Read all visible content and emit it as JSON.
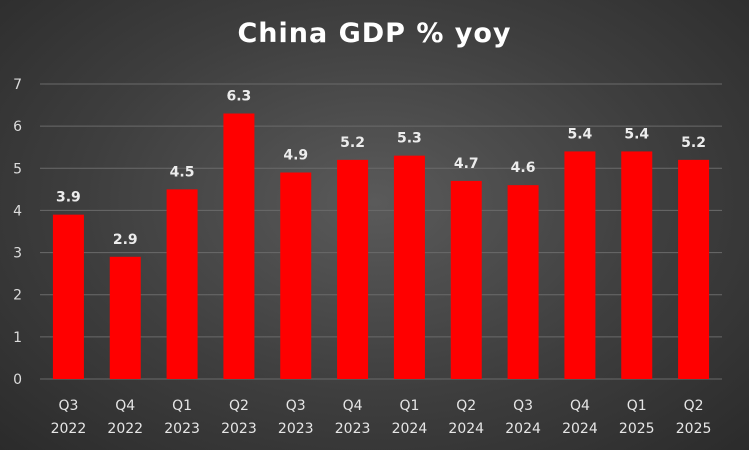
{
  "chart_data": {
    "type": "bar",
    "title": "China GDP % yoy",
    "categories": [
      [
        "Q3",
        "2022"
      ],
      [
        "Q4",
        "2022"
      ],
      [
        "Q1",
        "2023"
      ],
      [
        "Q2",
        "2023"
      ],
      [
        "Q3",
        "2023"
      ],
      [
        "Q4",
        "2023"
      ],
      [
        "Q1",
        "2024"
      ],
      [
        "Q2",
        "2024"
      ],
      [
        "Q3",
        "2024"
      ],
      [
        "Q4",
        "2024"
      ],
      [
        "Q1",
        "2025"
      ],
      [
        "Q2",
        "2025"
      ]
    ],
    "series": [
      {
        "values": [
          3.9,
          2.9,
          4.5,
          6.3,
          4.9,
          5.2,
          5.3,
          4.7,
          4.6,
          5.4,
          5.4,
          5.2
        ]
      }
    ],
    "ylim": [
      0,
      7
    ],
    "yticks": [
      0,
      1,
      2,
      3,
      4,
      5,
      6,
      7
    ],
    "grid": true,
    "bar_color": "#ff0000"
  }
}
